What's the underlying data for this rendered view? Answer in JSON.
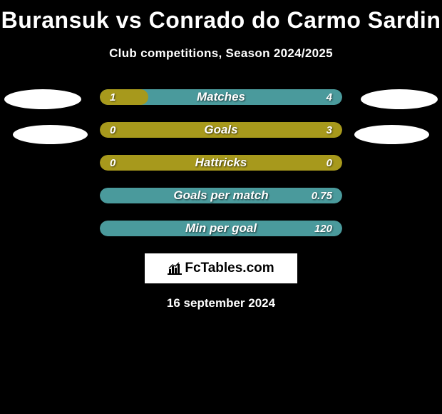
{
  "title": "Buransuk vs Conrado do Carmo Sardin",
  "subtitle": "Club competitions, Season 2024/2025",
  "date": "16 september 2024",
  "logo_text": "FcTables.com",
  "colors": {
    "background": "#000000",
    "bar_olive": "#a7991c",
    "bar_teal": "#4a9a9c",
    "text": "#ffffff",
    "ellipse": "#ffffff"
  },
  "stats": [
    {
      "label": "Matches",
      "left_value": "1",
      "right_value": "4",
      "left_pct": 20,
      "bg_color": "#4a9a9c",
      "left_color": "#a7991c"
    },
    {
      "label": "Goals",
      "left_value": "0",
      "right_value": "3",
      "left_pct": 0,
      "bg_color": "#a7991c",
      "left_color": "#4a9a9c"
    },
    {
      "label": "Hattricks",
      "left_value": "0",
      "right_value": "0",
      "left_pct": 0,
      "bg_color": "#a7991c",
      "left_color": "#4a9a9c"
    },
    {
      "label": "Goals per match",
      "left_value": "",
      "right_value": "0.75",
      "left_pct": 0,
      "bg_color": "#4a9a9c",
      "left_color": "#a7991c"
    },
    {
      "label": "Min per goal",
      "left_value": "",
      "right_value": "120",
      "left_pct": 0,
      "bg_color": "#4a9a9c",
      "left_color": "#a7991c"
    }
  ]
}
